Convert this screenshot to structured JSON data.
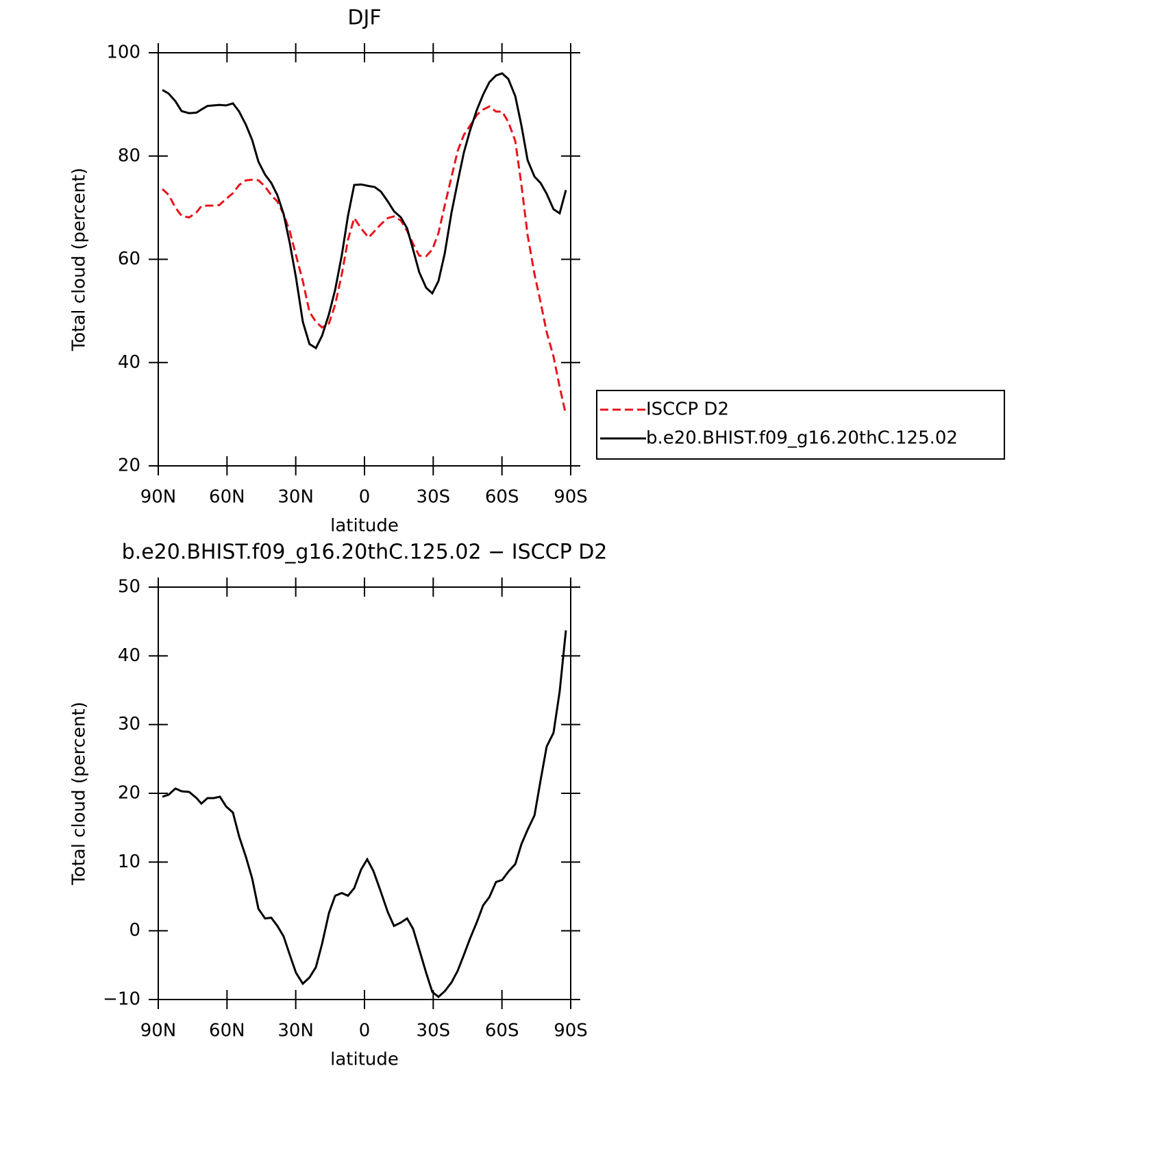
{
  "chart_data": [
    {
      "type": "line",
      "title": "DJF",
      "xlabel": "latitude",
      "ylabel": "Total cloud (percent)",
      "x": [
        88.2,
        85.5,
        82.5,
        79.8,
        76.5,
        73.3,
        71.2,
        68.5,
        65.8,
        63.4,
        60.4,
        57.4,
        54.7,
        51.7,
        49.0,
        46.3,
        43.4,
        40.7,
        38.0,
        35.3,
        32.6,
        29.9,
        26.9,
        24.0,
        21.2,
        18.5,
        15.5,
        12.8,
        9.9,
        7.2,
        4.5,
        1.5,
        -1.8,
        -4.5,
        -7.2,
        -10.2,
        -12.9,
        -15.9,
        -18.6,
        -21.2,
        -23.9,
        -26.9,
        -29.6,
        -32.3,
        -35.0,
        -38.0,
        -40.7,
        -43.4,
        -46.1,
        -49.1,
        -51.8,
        -54.5,
        -57.4,
        -60.1,
        -62.8,
        -65.8,
        -68.5,
        -71.2,
        -74.2,
        -76.8,
        -79.5,
        -82.5,
        -85.2,
        -87.9
      ],
      "series": [
        {
          "name": "ISCCP D2",
          "color": "#e8131b",
          "linestyle": "dashed",
          "values": [
            73.6,
            72.5,
            70.0,
            68.4,
            68.1,
            69.1,
            70.3,
            70.4,
            70.4,
            70.5,
            71.7,
            72.8,
            74.4,
            75.3,
            75.4,
            75.3,
            74.1,
            72.4,
            71.2,
            68.8,
            65.4,
            60.8,
            55.8,
            49.8,
            47.9,
            46.8,
            47.6,
            51.2,
            57.1,
            63.8,
            68.0,
            66.0,
            64.2,
            65.5,
            66.8,
            68.0,
            68.3,
            67.5,
            65.5,
            63.0,
            60.7,
            60.6,
            61.9,
            65.1,
            70.4,
            76.0,
            81.0,
            84.1,
            85.9,
            88.0,
            89.0,
            89.6,
            88.6,
            88.6,
            86.6,
            82.9,
            74.4,
            64.7,
            57.1,
            51.8,
            45.9,
            41.2,
            35.3,
            29.9
          ]
        },
        {
          "name": "b.e20.BHIST.f09_g16.20thC.125.02",
          "color": "#000000",
          "linestyle": "solid",
          "values": [
            92.8,
            92.1,
            90.6,
            88.7,
            88.3,
            88.4,
            89.0,
            89.7,
            89.8,
            89.9,
            89.8,
            90.2,
            88.6,
            86.0,
            83.1,
            78.9,
            76.4,
            74.8,
            72.4,
            68.8,
            63.1,
            56.5,
            47.9,
            43.6,
            42.8,
            45.2,
            49.4,
            54.1,
            60.8,
            68.4,
            74.4,
            74.5,
            74.2,
            74.0,
            73.1,
            71.2,
            69.3,
            68.1,
            66.0,
            61.9,
            57.5,
            54.5,
            53.4,
            55.8,
            61.1,
            69.1,
            75.0,
            80.7,
            85.0,
            89.0,
            91.9,
            94.3,
            95.6,
            96.0,
            94.9,
            91.6,
            85.9,
            79.2,
            76.0,
            74.8,
            72.7,
            69.7,
            68.9,
            73.4
          ]
        }
      ],
      "xlim": [
        90,
        -90
      ],
      "xticks": [
        {
          "value": 90,
          "label": "90N"
        },
        {
          "value": 60,
          "label": "60N"
        },
        {
          "value": 30,
          "label": "30N"
        },
        0,
        {
          "value": -30,
          "label": "30S"
        },
        {
          "value": -60,
          "label": "60S"
        },
        {
          "value": -90,
          "label": "90S"
        }
      ],
      "ylim": [
        20,
        100
      ],
      "yticks": [
        20,
        40,
        60,
        80,
        100
      ],
      "legend": "right"
    },
    {
      "type": "line",
      "title": "b.e20.BHIST.f09_g16.20thC.125.02 − ISCCP D2",
      "xlabel": "latitude",
      "ylabel": "Total cloud (percent)",
      "x": [
        88.2,
        85.5,
        82.5,
        79.8,
        76.5,
        73.3,
        71.2,
        68.5,
        65.8,
        63.1,
        60.4,
        57.4,
        54.7,
        51.7,
        49.0,
        46.3,
        43.4,
        40.7,
        38.0,
        35.3,
        32.6,
        29.9,
        26.9,
        24.0,
        21.2,
        18.5,
        15.5,
        12.8,
        9.9,
        7.2,
        4.5,
        1.5,
        -1.2,
        -3.9,
        -6.9,
        -10.2,
        -12.9,
        -15.9,
        -18.6,
        -21.2,
        -23.9,
        -26.9,
        -29.6,
        -32.3,
        -35.0,
        -38.0,
        -40.7,
        -43.4,
        -46.1,
        -49.1,
        -51.8,
        -54.5,
        -57.4,
        -60.1,
        -62.8,
        -65.8,
        -68.5,
        -71.2,
        -74.2,
        -76.8,
        -79.5,
        -82.5,
        -85.2,
        -87.9
      ],
      "series": [
        {
          "color": "#000000",
          "linestyle": "solid",
          "values": [
            19.5,
            19.8,
            20.7,
            20.3,
            20.2,
            19.3,
            18.5,
            19.3,
            19.3,
            19.5,
            18.1,
            17.2,
            13.7,
            10.7,
            7.6,
            3.2,
            1.8,
            1.9,
            0.7,
            -0.8,
            -3.5,
            -6.1,
            -7.7,
            -6.8,
            -5.3,
            -1.9,
            2.6,
            5.1,
            5.5,
            5.1,
            6.2,
            8.9,
            10.4,
            8.7,
            5.9,
            2.7,
            0.7,
            1.2,
            1.8,
            0.3,
            -2.7,
            -6.1,
            -8.9,
            -9.6,
            -8.8,
            -7.5,
            -5.8,
            -3.5,
            -1.1,
            1.3,
            3.7,
            4.9,
            7.1,
            7.4,
            8.6,
            9.7,
            12.6,
            14.7,
            16.8,
            21.8,
            26.8,
            28.8,
            34.8,
            43.7
          ]
        }
      ],
      "xlim": [
        90,
        -90
      ],
      "xticks": [
        {
          "value": 90,
          "label": "90N"
        },
        {
          "value": 60,
          "label": "60N"
        },
        {
          "value": 30,
          "label": "30N"
        },
        0,
        {
          "value": -30,
          "label": "30S"
        },
        {
          "value": -60,
          "label": "60S"
        },
        {
          "value": -90,
          "label": "90S"
        }
      ],
      "ylim": [
        -10,
        50
      ],
      "yticks": [
        {
          "value": -10,
          "label": "−10"
        },
        0,
        10,
        20,
        30,
        40,
        50
      ]
    }
  ]
}
